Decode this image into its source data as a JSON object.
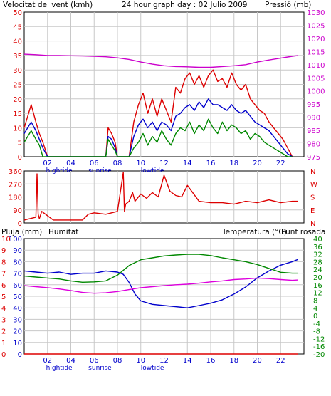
{
  "colors": {
    "wind": "#dd0000",
    "gust": "#0000cc",
    "gust2": "#008800",
    "pressure": "#cc00cc",
    "humidity": "#0000cc",
    "temperature": "#008800",
    "dewpoint": "#dd00dd",
    "rain": "#dd0000",
    "grid": "#c8c8c8",
    "frame": "#000000"
  },
  "chart_data": [
    {
      "type": "line",
      "title": "24 hour graph day : 02 Julio 2009",
      "left_axis_label": "Velocitat del vent (kmh)",
      "right_axis_label": "Pressió (mb)",
      "left_ylim": [
        0,
        50
      ],
      "left_ticks": [
        "0",
        "5",
        "10",
        "15",
        "20",
        "25",
        "30",
        "35",
        "40",
        "45",
        "50"
      ],
      "right_ylim": [
        975,
        1030
      ],
      "right_ticks": [
        "975",
        "980",
        "985",
        "990",
        "995",
        "1000",
        "1005",
        "1010",
        "1015",
        "1020",
        "1025",
        "1030"
      ],
      "x_ticks": [
        "02",
        "04",
        "06",
        "08",
        "10",
        "12",
        "14",
        "16",
        "18",
        "20",
        "22"
      ],
      "x_annotations": [
        "hightide",
        "sunrise",
        "lowtide"
      ],
      "series": [
        {
          "name": "wind_gust_red",
          "color_key": "wind",
          "x": [
            0,
            0.3,
            0.6,
            1.0,
            1.3,
            1.6,
            2.0,
            2.5,
            3.0,
            4.0,
            6.0,
            7.0,
            7.2,
            7.5,
            7.8,
            8.0,
            8.5,
            9.0,
            9.4,
            9.8,
            10.2,
            10.6,
            11.0,
            11.4,
            11.8,
            12.2,
            12.6,
            13.0,
            13.4,
            13.8,
            14.2,
            14.6,
            15.0,
            15.4,
            15.8,
            16.2,
            16.6,
            17.0,
            17.4,
            17.8,
            18.2,
            18.6,
            19.0,
            19.4,
            19.8,
            20.2,
            20.6,
            21.0,
            21.4,
            21.8,
            22.2,
            22.6,
            23.0
          ],
          "y": [
            10,
            14,
            18,
            12,
            8,
            5,
            0,
            0,
            0,
            0,
            0,
            0,
            10,
            8,
            5,
            0,
            0,
            0,
            12,
            18,
            22,
            15,
            20,
            14,
            20,
            16,
            12,
            24,
            22,
            27,
            29,
            25,
            28,
            24,
            28,
            30,
            26,
            27,
            24,
            29,
            25,
            23,
            25,
            20,
            18,
            16,
            15,
            12,
            10,
            8,
            6,
            3,
            0
          ]
        },
        {
          "name": "wind_avg_blue",
          "color_key": "gust",
          "x": [
            0,
            0.3,
            0.6,
            1.0,
            1.3,
            1.6,
            2.0,
            3.0,
            6.0,
            7.0,
            7.2,
            7.5,
            7.8,
            8.0,
            9.0,
            9.4,
            9.8,
            10.2,
            10.6,
            11.0,
            11.4,
            11.8,
            12.2,
            12.6,
            13.0,
            13.4,
            13.8,
            14.2,
            14.6,
            15.0,
            15.4,
            15.8,
            16.2,
            16.6,
            17.0,
            17.4,
            17.8,
            18.2,
            18.6,
            19.0,
            19.4,
            19.8,
            20.2,
            20.6,
            21.0,
            21.4,
            21.8,
            22.2,
            22.6,
            23.0
          ],
          "y": [
            8,
            10,
            12,
            9,
            6,
            3,
            0,
            0,
            0,
            0,
            7,
            6,
            3,
            0,
            0,
            7,
            11,
            13,
            10,
            12,
            9,
            12,
            11,
            9,
            14,
            15,
            17,
            18,
            16,
            19,
            17,
            20,
            18,
            18,
            17,
            16,
            18,
            16,
            15,
            16,
            14,
            12,
            11,
            10,
            9,
            7,
            5,
            3,
            1,
            0
          ]
        },
        {
          "name": "wind_min_green",
          "color_key": "gust2",
          "x": [
            0,
            0.3,
            0.6,
            1.0,
            1.3,
            1.6,
            2.0,
            3.0,
            7.0,
            7.2,
            7.5,
            7.8,
            8.0,
            9.0,
            9.4,
            9.8,
            10.2,
            10.6,
            11.0,
            11.4,
            11.8,
            12.2,
            12.6,
            13.0,
            13.4,
            13.8,
            14.2,
            14.6,
            15.0,
            15.4,
            15.8,
            16.2,
            16.6,
            17.0,
            17.4,
            17.8,
            18.2,
            18.6,
            19.0,
            19.4,
            19.8,
            20.2,
            20.6,
            21.0,
            21.4,
            21.8,
            22.2,
            22.6,
            23.0
          ],
          "y": [
            5,
            7,
            9,
            6,
            4,
            0,
            0,
            0,
            0,
            6,
            4,
            2,
            0,
            0,
            3,
            5,
            8,
            4,
            7,
            5,
            9,
            6,
            4,
            8,
            10,
            9,
            12,
            8,
            11,
            9,
            13,
            10,
            8,
            12,
            9,
            11,
            10,
            8,
            9,
            6,
            8,
            7,
            5,
            4,
            3,
            2,
            1,
            0,
            0
          ]
        },
        {
          "name": "pressure",
          "color_key": "pressure",
          "axis": "right",
          "x": [
            0,
            1,
            2,
            3,
            4,
            5,
            6,
            7,
            8,
            9,
            10,
            11,
            12,
            13,
            14,
            15,
            16,
            17,
            18,
            19,
            20,
            21,
            22,
            23,
            23.5
          ],
          "y": [
            1014,
            1013.8,
            1013.5,
            1013.5,
            1013.4,
            1013.3,
            1013.2,
            1013,
            1012.6,
            1012,
            1011,
            1010.2,
            1009.6,
            1009.3,
            1009.2,
            1009,
            1009,
            1009.3,
            1009.6,
            1010,
            1011,
            1011.8,
            1012.5,
            1013.2,
            1013.5
          ]
        }
      ]
    },
    {
      "type": "line",
      "left_ylim": [
        0,
        360
      ],
      "left_ticks": [
        "0",
        "90",
        "180",
        "270",
        "360"
      ],
      "right_labels": [
        "N",
        "W",
        "S",
        "E",
        "N"
      ],
      "series": [
        {
          "name": "wind_direction",
          "color_key": "wind",
          "x": [
            0,
            0.5,
            1.0,
            1.1,
            1.2,
            1.3,
            1.5,
            2.0,
            2.5,
            3.0,
            3.5,
            4.0,
            5.0,
            5.5,
            6.0,
            7.0,
            7.5,
            8.0,
            8.5,
            8.6,
            8.7,
            9.0,
            9.1,
            9.3,
            9.5,
            10,
            10.5,
            11,
            11.5,
            12,
            12.5,
            13,
            13.5,
            14,
            15,
            16,
            17,
            18,
            19,
            20,
            21,
            22,
            23,
            23.5
          ],
          "y": [
            20,
            30,
            40,
            340,
            60,
            30,
            80,
            50,
            20,
            20,
            20,
            20,
            20,
            60,
            70,
            60,
            70,
            80,
            350,
            80,
            130,
            150,
            170,
            210,
            150,
            200,
            170,
            210,
            180,
            330,
            220,
            190,
            180,
            260,
            150,
            140,
            140,
            130,
            150,
            140,
            160,
            140,
            150,
            150
          ]
        }
      ]
    },
    {
      "type": "line",
      "left_axis_label": "Pluja (mm)",
      "left_axis_label2": "Humitat",
      "right_axis_label": "Temperatura (°C)",
      "right_axis_label2": "Punt rosada",
      "left_ylim_rain": [
        0,
        10
      ],
      "left_ticks_rain": [
        "0",
        "1",
        "2",
        "3",
        "4",
        "5",
        "6",
        "7",
        "8",
        "9",
        "10"
      ],
      "left_ylim_hum": [
        0,
        100
      ],
      "left_ticks_hum": [
        "0",
        "10",
        "20",
        "30",
        "40",
        "50",
        "60",
        "70",
        "80",
        "90",
        "100"
      ],
      "right_ylim": [
        -20,
        40
      ],
      "right_ticks": [
        "-20",
        "-16",
        "-12",
        "-8",
        "-4",
        "0",
        "4",
        "8",
        "12",
        "16",
        "20",
        "24",
        "28",
        "32",
        "36",
        "40"
      ],
      "x_ticks": [
        "02",
        "04",
        "06",
        "08",
        "10",
        "12",
        "14",
        "16",
        "18",
        "20",
        "22"
      ],
      "x_annotations": [
        "hightide",
        "sunrise",
        "lowtide"
      ],
      "series": [
        {
          "name": "humidity",
          "color_key": "humidity",
          "x": [
            0,
            1,
            2,
            3,
            4,
            5,
            6,
            7,
            8,
            8.5,
            9,
            9.5,
            10,
            11,
            12,
            13,
            14,
            15,
            16,
            17,
            18,
            19,
            20,
            21,
            22,
            23,
            23.5
          ],
          "y": [
            72,
            71,
            70,
            71,
            69,
            70,
            70,
            72,
            71,
            69,
            62,
            52,
            46,
            43,
            42,
            41,
            40,
            42,
            44,
            47,
            52,
            58,
            66,
            72,
            77,
            80,
            82
          ]
        },
        {
          "name": "temperature",
          "color_key": "temperature",
          "axis": "right",
          "x": [
            0,
            1,
            2,
            3,
            4,
            5,
            6,
            7,
            8,
            9,
            10,
            11,
            12,
            13,
            14,
            15,
            16,
            17,
            18,
            19,
            20,
            21,
            22,
            23,
            23.5
          ],
          "y": [
            20.5,
            20,
            19.5,
            19,
            18,
            17.3,
            17.5,
            18,
            21,
            26,
            29,
            30,
            31,
            31.5,
            31.8,
            31.8,
            31.2,
            30,
            29,
            28,
            26.5,
            24.5,
            22.5,
            22,
            22
          ]
        },
        {
          "name": "dewpoint",
          "color_key": "dewpoint",
          "axis": "right",
          "x": [
            0,
            1,
            2,
            3,
            4,
            5,
            6,
            7,
            8,
            9,
            10,
            11,
            12,
            13,
            14,
            15,
            16,
            17,
            18,
            19,
            20,
            21,
            22,
            23,
            23.5
          ],
          "y": [
            15.5,
            15,
            14.5,
            13.8,
            13,
            12,
            11.6,
            11.8,
            12.5,
            13.5,
            14.5,
            15,
            15.5,
            16,
            16.3,
            16.8,
            17.5,
            18,
            18.7,
            19,
            19.5,
            19.2,
            18.7,
            18.3,
            18.5
          ]
        },
        {
          "name": "rain",
          "color_key": "rain",
          "x": [
            0,
            23.5
          ],
          "y": [
            0,
            0
          ]
        }
      ]
    }
  ]
}
